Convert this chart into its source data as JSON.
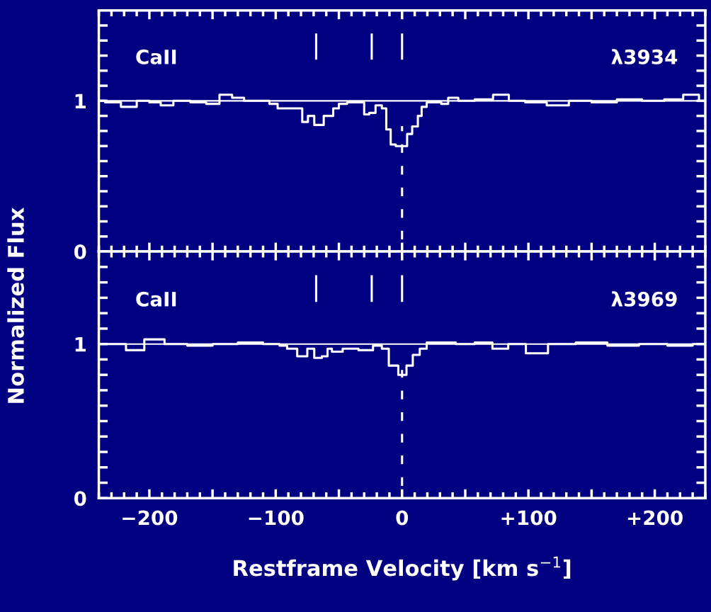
{
  "chart_data": [
    {
      "type": "step",
      "ylabel": "Normalized Flux",
      "annotations": [
        "CaII",
        "λ3934"
      ],
      "series": [
        {
          "color": "#ffffff",
          "line_style": "solid",
          "x": [
            -240,
            -230,
            -215,
            -205,
            -195,
            -187,
            -175,
            -160,
            -150,
            -139,
            -130,
            -120,
            -110,
            -100,
            -97,
            -81,
            -77,
            -72,
            -67,
            -63,
            -61,
            -56,
            -53,
            -47,
            -40,
            -32,
            -28,
            -24,
            -18,
            -14,
            -11,
            -7,
            -3,
            3,
            5,
            11,
            14,
            17,
            22,
            28,
            34,
            39,
            50,
            65,
            79,
            90,
            105,
            124,
            140,
            160,
            180,
            200,
            215,
            230,
            240
          ],
          "values": [
            1.0,
            0.99,
            0.96,
            1.0,
            0.99,
            0.97,
            1.0,
            0.99,
            0.98,
            1.04,
            1.02,
            1.0,
            1.0,
            0.98,
            0.95,
            0.95,
            0.86,
            0.9,
            0.84,
            0.84,
            0.9,
            0.9,
            0.95,
            0.98,
            0.99,
            0.99,
            0.91,
            0.92,
            0.97,
            0.95,
            0.81,
            0.71,
            0.7,
            0.7,
            0.78,
            0.83,
            0.9,
            0.96,
            0.99,
            0.99,
            0.98,
            1.02,
            1.0,
            1.01,
            1.04,
            1.0,
            0.99,
            0.97,
            1.0,
            0.99,
            1.01,
            1.0,
            1.01,
            1.04,
            1.0
          ]
        }
      ],
      "ref_lines": [
        {
          "axis": "y",
          "value": 1,
          "color": "#ffffff",
          "line_style": "solid"
        },
        {
          "axis": "x",
          "value": -68,
          "color": "#ffffff",
          "line_style": "solid"
        },
        {
          "axis": "x",
          "value": -24,
          "color": "#ffffff",
          "line_style": "solid"
        },
        {
          "axis": "x",
          "value": 0,
          "color": "#ffffff",
          "line_style": "solid"
        },
        {
          "axis": "x",
          "value": 0,
          "color": "#ffffff",
          "line_style": "dashed"
        }
      ],
      "xlim": [
        -240,
        240
      ],
      "ylim": [
        0,
        1.6
      ],
      "tick_labels": "y",
      "xticks": [
        {
          "value": -200,
          "label": null
        },
        {
          "value": -150,
          "label": null
        },
        {
          "value": -100,
          "label": null
        },
        {
          "value": -50,
          "label": null
        },
        {
          "value": 0,
          "label": null
        },
        {
          "value": 50,
          "label": null
        },
        {
          "value": 100,
          "label": null
        },
        {
          "value": 150,
          "label": null
        },
        {
          "value": 200,
          "label": null
        }
      ],
      "yticks": [
        0,
        {
          "value": 0.1,
          "label": null
        },
        {
          "value": 0.2,
          "label": null
        },
        {
          "value": 0.3,
          "label": null
        },
        {
          "value": 0.4,
          "label": null
        },
        {
          "value": 0.5,
          "label": null
        },
        {
          "value": 0.6,
          "label": null
        },
        {
          "value": 0.7,
          "label": null
        },
        {
          "value": 0.8,
          "label": null
        },
        {
          "value": 0.9,
          "label": null
        },
        1,
        {
          "value": 1.1,
          "label": null
        },
        {
          "value": 1.2,
          "label": null
        },
        {
          "value": 1.3,
          "label": null
        },
        {
          "value": 1.4,
          "label": null
        },
        {
          "value": 1.5,
          "label": null
        }
      ]
    },
    {
      "type": "step",
      "xlabel": "Restframe Velocity [km s$^{−1}$]",
      "annotations": [
        "CaII",
        "λ3969"
      ],
      "series": [
        {
          "color": "#ffffff",
          "line_style": "solid",
          "x": [
            -240,
            -225,
            -212,
            -196,
            -180,
            -160,
            -140,
            -120,
            -100,
            -94,
            -88,
            -78,
            -72,
            -67,
            -60,
            -58,
            -53,
            -41,
            -28,
            -18,
            -14,
            -7,
            1,
            6,
            11,
            17,
            22,
            35,
            50,
            65,
            78,
            90,
            106,
            125,
            150,
            175,
            200,
            220,
            240
          ],
          "values": [
            1.0,
            1.0,
            0.96,
            1.03,
            1.0,
            0.99,
            1.0,
            1.01,
            1.0,
            0.99,
            0.97,
            0.92,
            0.97,
            0.91,
            0.92,
            0.97,
            0.95,
            0.97,
            0.96,
            0.99,
            0.97,
            0.86,
            0.8,
            0.86,
            0.93,
            0.97,
            1.01,
            1.01,
            1.0,
            1.01,
            0.97,
            1.0,
            0.94,
            1.0,
            1.01,
            0.99,
            1.0,
            0.99,
            1.0
          ]
        }
      ],
      "ref_lines": [
        {
          "axis": "y",
          "value": 1,
          "color": "#ffffff",
          "line_style": "solid"
        },
        {
          "axis": "x",
          "value": -68,
          "color": "#ffffff",
          "line_style": "solid"
        },
        {
          "axis": "x",
          "value": -24,
          "color": "#ffffff",
          "line_style": "solid"
        },
        {
          "axis": "x",
          "value": 0,
          "color": "#ffffff",
          "line_style": "solid"
        },
        {
          "axis": "x",
          "value": 0,
          "color": "#ffffff",
          "line_style": "dashed"
        }
      ],
      "xlim": [
        -240,
        240
      ],
      "ylim": [
        0,
        1.6
      ],
      "xticks": [
        {
          "value": -200,
          "label": "−200"
        },
        {
          "value": -150,
          "label": null
        },
        {
          "value": -100,
          "label": "−100"
        },
        {
          "value": -50,
          "label": null
        },
        {
          "value": 0,
          "label": "0"
        },
        {
          "value": 50,
          "label": null
        },
        {
          "value": 100,
          "label": "+100"
        },
        {
          "value": 150,
          "label": null
        },
        {
          "value": 200,
          "label": "+200"
        }
      ],
      "yticks": [
        0,
        {
          "value": 0.1,
          "label": null
        },
        {
          "value": 0.2,
          "label": null
        },
        {
          "value": 0.3,
          "label": null
        },
        {
          "value": 0.4,
          "label": null
        },
        {
          "value": 0.5,
          "label": null
        },
        {
          "value": 0.6,
          "label": null
        },
        {
          "value": 0.7,
          "label": null
        },
        {
          "value": 0.8,
          "label": null
        },
        {
          "value": 0.9,
          "label": null
        },
        1,
        {
          "value": 1.1,
          "label": null
        },
        {
          "value": 1.2,
          "label": null
        },
        {
          "value": 1.3,
          "label": null
        },
        {
          "value": 1.4,
          "label": null
        },
        {
          "value": 1.5,
          "label": null
        }
      ]
    }
  ]
}
